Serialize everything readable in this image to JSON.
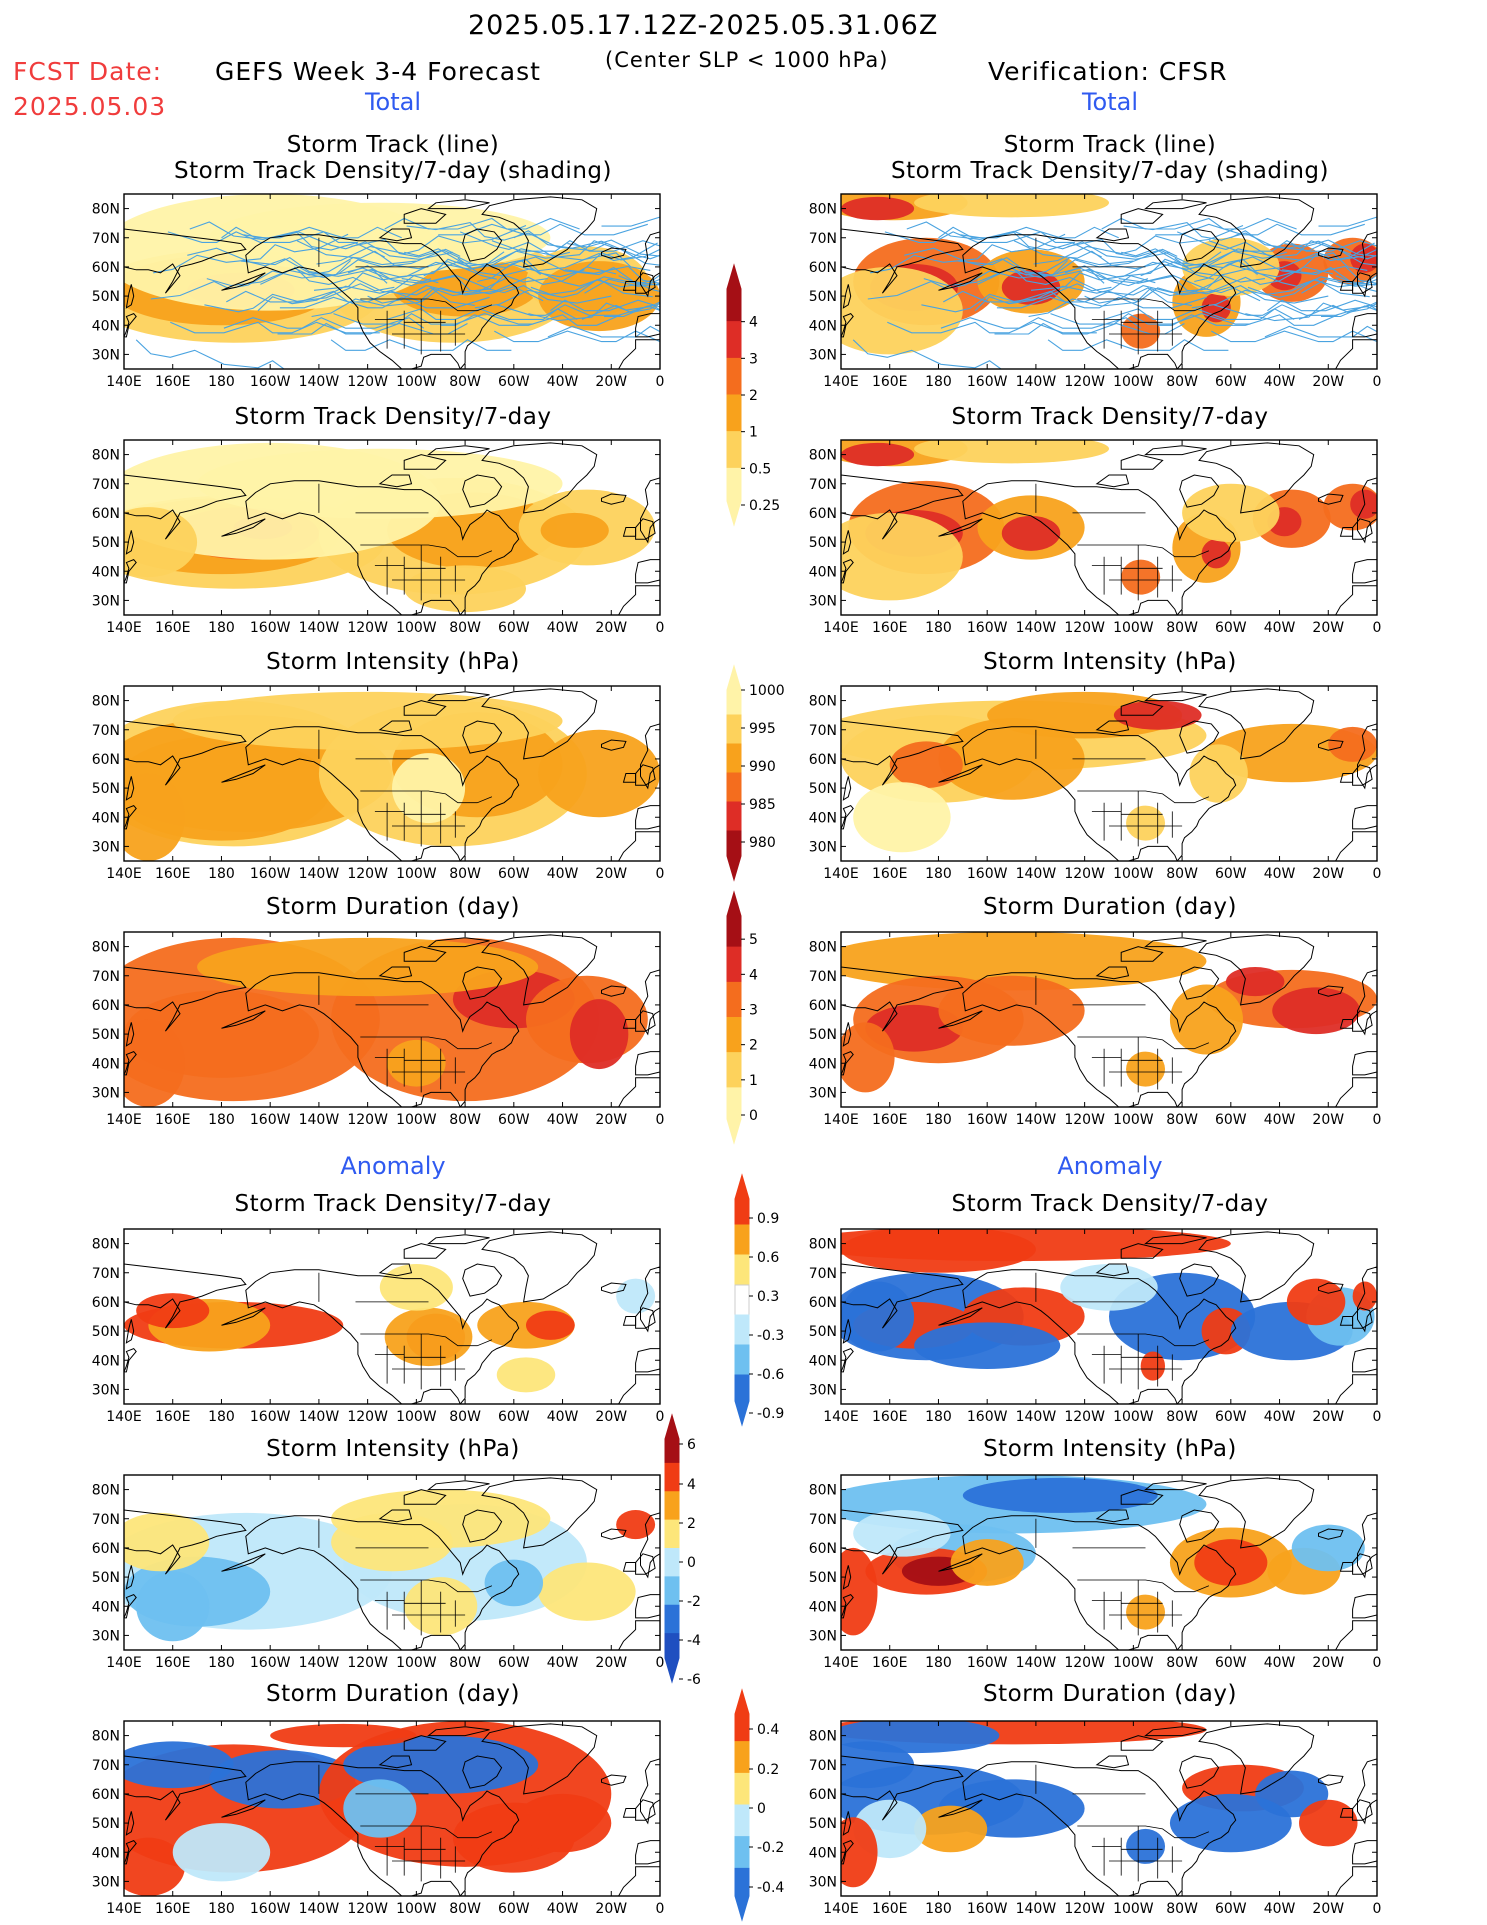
{
  "header": {
    "date_range": "2025.05.17.12Z-2025.05.31.06Z",
    "fcst_label": "FCST Date:",
    "fcst_date": "2025.05.03",
    "forecast_title": "GEFS Week 3-4 Forecast",
    "criterion": "(Center SLP < 1000 hPa)",
    "verification": "Verification: CFSR"
  },
  "sections": {
    "total": "Total",
    "anomaly": "Anomaly"
  },
  "panel_titles": {
    "track_line": "Storm Track (line)",
    "track_shading": "Storm Track Density/7-day (shading)",
    "density": "Storm Track Density/7-day",
    "intensity": "Storm Intensity (hPa)",
    "duration": "Storm Duration (day)"
  },
  "axes": {
    "lon_ticks": [
      "140E",
      "160E",
      "180",
      "160W",
      "140W",
      "120W",
      "100W",
      "80W",
      "60W",
      "40W",
      "20W",
      "0"
    ],
    "lat_ticks": [
      "80N",
      "70N",
      "60N",
      "50N",
      "40N",
      "30N"
    ]
  },
  "colorbars": {
    "density_total": {
      "labels": [
        "4",
        "3",
        "2",
        "1",
        "0.5",
        "0.25"
      ],
      "colors": [
        "#a50f15",
        "#de2d26",
        "#f46d1e",
        "#f8a21c",
        "#fdd25c",
        "#fff3a8"
      ]
    },
    "intensity_total": {
      "labels": [
        "1000",
        "995",
        "990",
        "985",
        "980"
      ],
      "colors": [
        "#fff3a8",
        "#fdd25c",
        "#f8a21c",
        "#f46d1e",
        "#de2d26",
        "#a50f15"
      ]
    },
    "duration_total": {
      "labels": [
        "5",
        "4",
        "3",
        "2",
        "1",
        "0"
      ],
      "colors": [
        "#a50f15",
        "#de2d26",
        "#f46d1e",
        "#f8a21c",
        "#fdd25c",
        "#fff3a8"
      ]
    },
    "density_anom": {
      "labels": [
        "0.9",
        "0.6",
        "0.3",
        "-0.3",
        "-0.6",
        "-0.9"
      ],
      "colors": [
        "#f03c14",
        "#f8a21c",
        "#fde67a",
        "#ffffff",
        "#bfe8fa",
        "#6ec0f0",
        "#2b72d8"
      ]
    },
    "intensity_anom": {
      "labels": [
        "6",
        "4",
        "2",
        "0",
        "-2",
        "-4",
        "-6"
      ],
      "colors": [
        "#a50f15",
        "#f03c14",
        "#f8a21c",
        "#fde67a",
        "#bfe8fa",
        "#6ec0f0",
        "#2b72d8",
        "#1f4fc0"
      ]
    },
    "duration_anom": {
      "labels": [
        "0.4",
        "0.2",
        "0",
        "-0.2",
        "-0.4"
      ],
      "colors": [
        "#f03c14",
        "#f8a21c",
        "#fde67a",
        "#bfe8fa",
        "#6ec0f0",
        "#2b72d8"
      ]
    }
  },
  "palette": {
    "ocean": "#ffffff",
    "coast": "#000000",
    "track_line": "#4aa3e0"
  }
}
